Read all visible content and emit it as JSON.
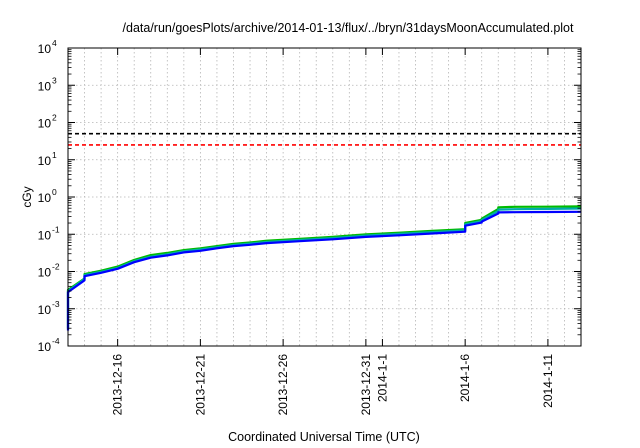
{
  "chart_data": {
    "type": "line",
    "title": "/data/run/goesPlots/archive/2014-01-13/flux/../bryn/31daysMoonAccumulated.plot",
    "xlabel": "Coordinated Universal Time (UTC)",
    "ylabel": "cGy",
    "yscale": "log",
    "ylim": [
      0.0001,
      10000
    ],
    "y_tick_labels": [
      {
        "base": "10",
        "exp": "-4",
        "value": 0.0001
      },
      {
        "base": "10",
        "exp": "-3",
        "value": 0.001
      },
      {
        "base": "10",
        "exp": "-2",
        "value": 0.01
      },
      {
        "base": "10",
        "exp": "-1",
        "value": 0.1
      },
      {
        "base": "10",
        "exp": "0",
        "value": 1
      },
      {
        "base": "10",
        "exp": "1",
        "value": 10
      },
      {
        "base": "10",
        "exp": "2",
        "value": 100
      },
      {
        "base": "10",
        "exp": "3",
        "value": 1000
      },
      {
        "base": "10",
        "exp": "4",
        "value": 10000
      }
    ],
    "xlim": [
      "2013-12-13",
      "2014-01-13"
    ],
    "x_tick_labels": [
      "2013-12-16",
      "2013-12-21",
      "2013-12-26",
      "2013-12-31",
      "2014-1-1",
      "2014-1-6",
      "2014-1-11"
    ],
    "x_ticks": [
      "2013-12-16",
      "2013-12-21",
      "2013-12-26",
      "2013-12-31",
      "2014-01-01",
      "2014-01-06",
      "2014-01-11"
    ],
    "grid": true,
    "reference_lines": [
      {
        "value": 50,
        "color": "#000000",
        "style": "dashed"
      },
      {
        "value": 25,
        "color": "#ff0000",
        "style": "dashed"
      }
    ],
    "x": [
      "2013-12-13",
      "2013-12-13",
      "2013-12-13",
      "2013-12-14",
      "2013-12-14",
      "2013-12-15",
      "2013-12-16",
      "2013-12-17",
      "2013-12-18",
      "2013-12-19",
      "2013-12-20",
      "2013-12-21",
      "2013-12-22",
      "2013-12-23",
      "2013-12-24",
      "2013-12-25",
      "2013-12-27",
      "2013-12-29",
      "2013-12-31",
      "2014-01-02",
      "2014-01-04",
      "2014-01-06",
      "2014-01-06",
      "2014-01-07",
      "2014-01-07",
      "2014-01-08",
      "2014-01-08",
      "2014-01-09",
      "2014-01-11",
      "2014-01-13"
    ],
    "series": [
      {
        "color": "#00bb00",
        "values": [
          0.0003,
          0.0014,
          0.0032,
          0.0065,
          0.0085,
          0.0105,
          0.0135,
          0.0205,
          0.0275,
          0.0315,
          0.0375,
          0.042,
          0.048,
          0.055,
          0.06,
          0.067,
          0.075,
          0.085,
          0.099,
          0.11,
          0.123,
          0.137,
          0.2,
          0.245,
          0.262,
          0.48,
          0.53,
          0.545,
          0.55,
          0.56
        ]
      },
      {
        "color": "#00aaaa",
        "values": [
          0.00028,
          0.0013,
          0.003,
          0.0062,
          0.008,
          0.0098,
          0.0125,
          0.019,
          0.025,
          0.029,
          0.035,
          0.039,
          0.045,
          0.051,
          0.056,
          0.062,
          0.07,
          0.079,
          0.092,
          0.102,
          0.114,
          0.127,
          0.185,
          0.225,
          0.24,
          0.42,
          0.46,
          0.47,
          0.48,
          0.49
        ]
      },
      {
        "color": "#0000ff",
        "values": [
          0.00026,
          0.0012,
          0.0028,
          0.0058,
          0.0075,
          0.0092,
          0.0118,
          0.0178,
          0.0235,
          0.027,
          0.0325,
          0.036,
          0.042,
          0.048,
          0.052,
          0.058,
          0.065,
          0.073,
          0.085,
          0.094,
          0.105,
          0.117,
          0.17,
          0.205,
          0.218,
          0.36,
          0.385,
          0.39,
          0.395,
          0.4
        ]
      }
    ]
  }
}
